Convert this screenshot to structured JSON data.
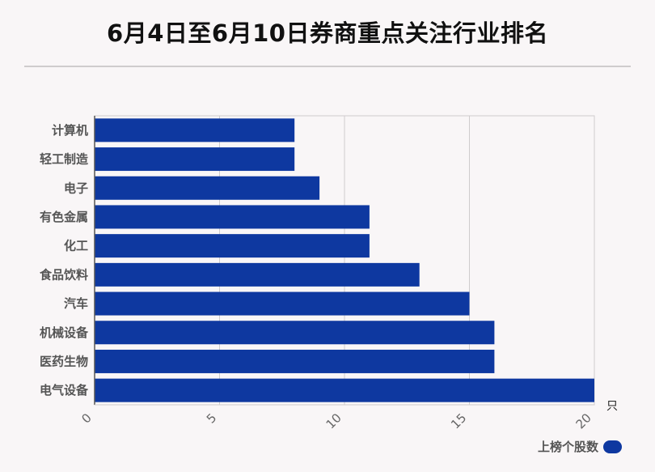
{
  "title": "6月4日至6月10日券商重点关注行业排名",
  "chart_data": {
    "type": "bar",
    "orientation": "horizontal",
    "categories": [
      "计算机",
      "轻工制造",
      "电子",
      "有色金属",
      "化工",
      "食品饮料",
      "汽车",
      "机械设备",
      "医药生物",
      "电气设备"
    ],
    "series": [
      {
        "name": "上榜个股数",
        "values": [
          8,
          8,
          9,
          11,
          11,
          13,
          15,
          16,
          16,
          20
        ]
      }
    ],
    "x_ticks": [
      "0",
      "5",
      "10",
      "15",
      "20"
    ],
    "xlim": [
      0,
      20
    ],
    "x_unit": "只",
    "grid": true,
    "legend_position": "bottom-right",
    "bar_color": "#0e38a0"
  }
}
